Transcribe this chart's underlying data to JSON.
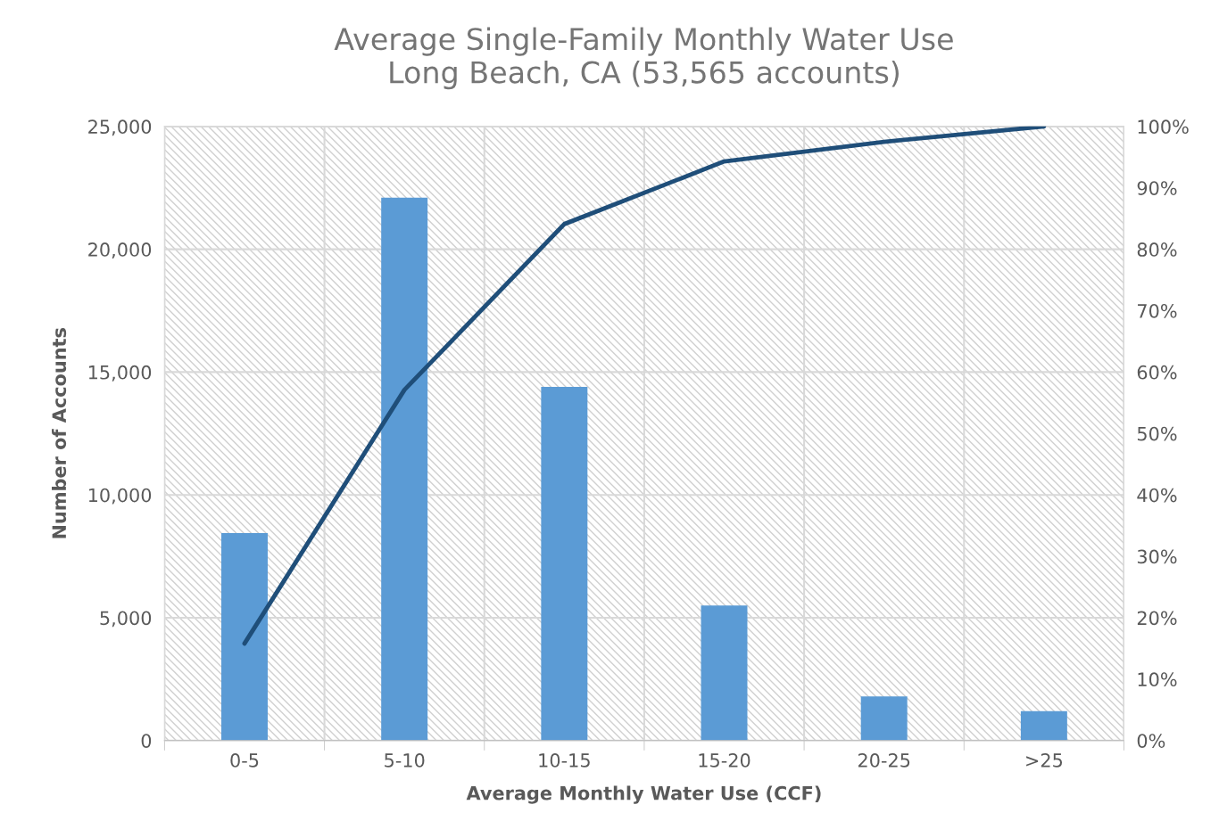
{
  "chart_data": {
    "type": "bar",
    "title": "Average Single-Family Monthly Water Use\nLong Beach, CA (53,565 accounts)",
    "xlabel": "Average Monthly Water Use (CCF)",
    "ylabel": "Number of Accounts",
    "categories": [
      "0-5",
      "5-10",
      "10-15",
      "15-20",
      "20-25",
      ">25"
    ],
    "series": [
      {
        "color": "#5b9bd5",
        "values": [
          8450,
          22100,
          14400,
          5500,
          1800,
          1200
        ]
      },
      {
        "type": "line",
        "axis": "y2",
        "color": "#1f4e79",
        "values": [
          15.8,
          57.1,
          84.1,
          94.3,
          97.5,
          100
        ]
      }
    ],
    "ylim": [
      0,
      25000
    ],
    "yticks": [
      0,
      {
        "value": 5000,
        "label": "5,000"
      },
      {
        "value": 10000,
        "label": "10,000"
      },
      {
        "value": 15000,
        "label": "15,000"
      },
      {
        "value": 20000,
        "label": "20,000"
      },
      {
        "value": 25000,
        "label": "25,000"
      }
    ],
    "y2lim": [
      0,
      100
    ],
    "y2ticks": [
      {
        "value": 0,
        "label": "0%"
      },
      {
        "value": 10,
        "label": "10%"
      },
      {
        "value": 20,
        "label": "20%"
      },
      {
        "value": 30,
        "label": "30%"
      },
      {
        "value": 40,
        "label": "40%"
      },
      {
        "value": 50,
        "label": "50%"
      },
      {
        "value": 60,
        "label": "60%"
      },
      {
        "value": 70,
        "label": "70%"
      },
      {
        "value": 80,
        "label": "80%"
      },
      {
        "value": 90,
        "label": "90%"
      },
      {
        "value": 100,
        "label": "100%"
      }
    ],
    "grid": true,
    "marker": "none",
    "line_style": "solid"
  }
}
